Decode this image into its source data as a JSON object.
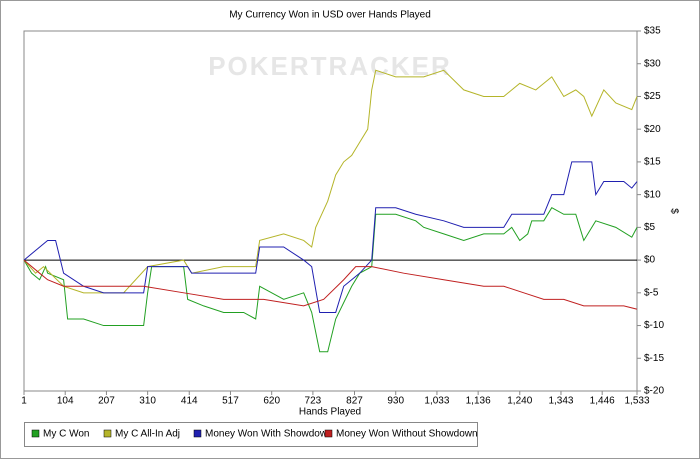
{
  "chart_data": {
    "type": "line",
    "title": "My Currency Won in USD over Hands Played",
    "watermark": "POKERTRACKER",
    "x_label": "Hands Played",
    "y_label": "$",
    "xlim": [
      1,
      1533
    ],
    "xticks": [
      1,
      104,
      207,
      310,
      414,
      517,
      620,
      723,
      827,
      930,
      {
        "value": 1033,
        "label": "1,033"
      },
      {
        "value": 1136,
        "label": "1,136"
      },
      {
        "value": 1240,
        "label": "1,240"
      },
      {
        "value": 1343,
        "label": "1,343"
      },
      {
        "value": 1446,
        "label": "1,446"
      },
      {
        "value": 1533,
        "label": "1,533"
      }
    ],
    "ylim": [
      -20,
      35
    ],
    "yticks": [
      {
        "value": -20,
        "label": "$-20"
      },
      {
        "value": -15,
        "label": "$-15"
      },
      {
        "value": -10,
        "label": "$-10"
      },
      {
        "value": -5,
        "label": "$-5"
      },
      {
        "value": 0,
        "label": "$0"
      },
      {
        "value": 5,
        "label": "$5"
      },
      {
        "value": 10,
        "label": "$10"
      },
      {
        "value": 15,
        "label": "$15"
      },
      {
        "value": 20,
        "label": "$20"
      },
      {
        "value": 25,
        "label": "$25"
      },
      {
        "value": 30,
        "label": "$30"
      },
      {
        "value": 35,
        "label": "$35"
      }
    ],
    "legend": "bottom",
    "series": [
      {
        "name": "My C Won",
        "color": "#22a022",
        "x": [
          1,
          20,
          40,
          55,
          60,
          100,
          110,
          150,
          200,
          250,
          300,
          310,
          320,
          400,
          410,
          450,
          500,
          550,
          580,
          590,
          620,
          650,
          700,
          720,
          740,
          760,
          780,
          820,
          840,
          870,
          880,
          930,
          980,
          1000,
          1050,
          1100,
          1150,
          1200,
          1220,
          1240,
          1260,
          1270,
          1300,
          1320,
          1350,
          1380,
          1400,
          1430,
          1480,
          1520,
          1533
        ],
        "values": [
          0,
          -2,
          -3,
          -1,
          -2,
          -3,
          -9,
          -9,
          -10,
          -10,
          -10,
          -5,
          -1,
          -1,
          -6,
          -7,
          -8,
          -8,
          -9,
          -4,
          -5,
          -6,
          -5,
          -8,
          -14,
          -14,
          -9,
          -4,
          -2,
          -1,
          7,
          7,
          6,
          5,
          4,
          3,
          4,
          4,
          5,
          3,
          4,
          6,
          6,
          8,
          7,
          7,
          3,
          6,
          5,
          3.5,
          5
        ]
      },
      {
        "name": "My C All-In Adj",
        "color": "#b5b52a",
        "x": [
          1,
          30,
          50,
          100,
          150,
          250,
          310,
          400,
          420,
          500,
          580,
          590,
          650,
          700,
          720,
          730,
          760,
          780,
          800,
          820,
          840,
          860,
          870,
          880,
          930,
          1000,
          1050,
          1100,
          1150,
          1200,
          1240,
          1280,
          1300,
          1320,
          1350,
          1380,
          1400,
          1420,
          1450,
          1480,
          1520,
          1533
        ],
        "values": [
          0,
          -2,
          -1,
          -4,
          -5,
          -5,
          -1,
          0,
          -2,
          -1,
          -1,
          3,
          4,
          3,
          2,
          5,
          9,
          13,
          15,
          16,
          18,
          20,
          26,
          29,
          28,
          28,
          29,
          26,
          25,
          25,
          27,
          26,
          27,
          28,
          25,
          26,
          25,
          22,
          26,
          24,
          23,
          25
        ]
      },
      {
        "name": "Money Won With Showdown",
        "color": "#2020b0",
        "x": [
          1,
          60,
          80,
          100,
          150,
          200,
          300,
          310,
          410,
          420,
          580,
          590,
          650,
          700,
          720,
          740,
          780,
          800,
          840,
          870,
          880,
          930,
          980,
          1050,
          1100,
          1200,
          1220,
          1300,
          1320,
          1350,
          1370,
          1420,
          1430,
          1450,
          1500,
          1520,
          1533
        ],
        "values": [
          0,
          3,
          3,
          -2,
          -4,
          -5,
          -5,
          -1,
          -1,
          -2,
          -2,
          2,
          2,
          0,
          -1,
          -8,
          -8,
          -4,
          -2,
          0,
          8,
          8,
          7,
          6,
          5,
          5,
          7,
          7,
          10,
          10,
          15,
          15,
          10,
          12,
          12,
          11,
          12
        ]
      },
      {
        "name": "Money Won Without Showdown",
        "color": "#c02020",
        "x": [
          1,
          40,
          60,
          100,
          150,
          200,
          300,
          400,
          500,
          600,
          700,
          750,
          800,
          830,
          870,
          950,
          1050,
          1150,
          1200,
          1250,
          1300,
          1350,
          1400,
          1450,
          1500,
          1533
        ],
        "values": [
          0,
          -2,
          -3,
          -4,
          -4,
          -4,
          -4,
          -5,
          -6,
          -6,
          -7,
          -6,
          -3,
          -1,
          -1,
          -2,
          -3,
          -4,
          -4,
          -5,
          -6,
          -6,
          -7,
          -7,
          -7,
          -7.5
        ]
      }
    ]
  }
}
